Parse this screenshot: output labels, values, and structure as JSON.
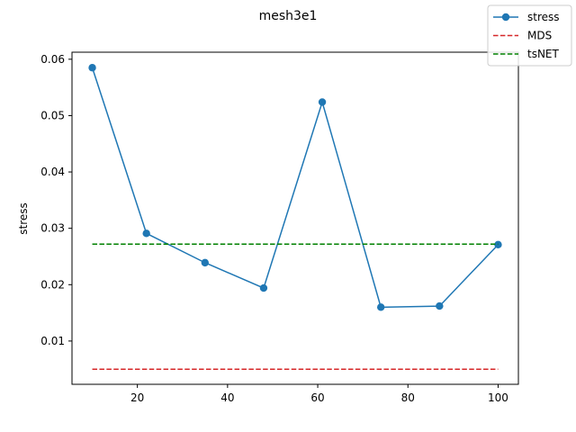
{
  "chart_data": {
    "type": "line",
    "title": "mesh3e1",
    "xlabel": "",
    "ylabel": "stress",
    "xlim": [
      5.5,
      104.5
    ],
    "ylim": [
      0.00232,
      0.06125
    ],
    "xticks": [
      20,
      40,
      60,
      80,
      100
    ],
    "xtick_labels": [
      "20",
      "40",
      "60",
      "80",
      "100"
    ],
    "yticks": [
      0.01,
      0.02,
      0.03,
      0.04,
      0.05,
      0.06
    ],
    "ytick_labels": [
      "0.01",
      "0.02",
      "0.03",
      "0.04",
      "0.05",
      "0.06"
    ],
    "grid": false,
    "legend_position": "top-right",
    "series": [
      {
        "name": "stress",
        "style": "solid-marker",
        "color": "#1f77b4",
        "x": [
          10,
          22,
          35,
          48,
          61,
          74,
          87,
          100
        ],
        "y": [
          0.0585,
          0.0291,
          0.0239,
          0.0194,
          0.0524,
          0.016,
          0.0162,
          0.0271
        ]
      },
      {
        "name": "MDS",
        "style": "dashed",
        "color": "#d62728",
        "x": [
          10,
          100
        ],
        "y": [
          0.005,
          0.005
        ]
      },
      {
        "name": "tsNET",
        "style": "dashed",
        "color": "#008000",
        "x": [
          10,
          100
        ],
        "y": [
          0.0272,
          0.0272
        ]
      }
    ]
  }
}
